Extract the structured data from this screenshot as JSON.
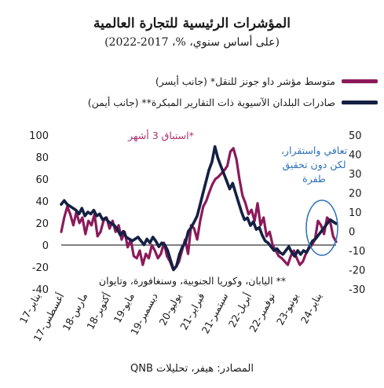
{
  "title": "المؤشرات الرئيسية للتجارة العالمية",
  "subtitle": "(على أساس سنوي، %، 2017-2022)",
  "source": "المصادر: هيفر، تحليلات QNB",
  "colors": {
    "series1": "#8b1a5a",
    "series2": "#152043",
    "annotation": "#2e72b8",
    "annotation_text": "#a8336f",
    "zero_line": "#000000"
  },
  "chart_data": {
    "type": "line",
    "x_labels": [
      "يناير-17",
      "أغسطس-17",
      "مارس-18",
      "أكتوبر-18",
      "مايو-19",
      "ديسمبر-19",
      "يوليو-20",
      "فبراير-21",
      "سبتمبر-21",
      "أبريل-22",
      "نوفمبر-22",
      "يونيو-23",
      "يناير-24"
    ],
    "ylim_left": [
      -40,
      100
    ],
    "yticks_left": [
      100,
      80,
      60,
      40,
      20,
      0,
      -20,
      -40
    ],
    "ylim_right": [
      -30,
      50
    ],
    "yticks_right": [
      50,
      40,
      30,
      20,
      10,
      0,
      -10,
      -20,
      -30
    ],
    "series": [
      {
        "name": "متوسط مؤشر داو جونز للنقل* (جانب أيسر)",
        "axis": "left",
        "color": "#8b1a5a",
        "values": [
          12,
          25,
          35,
          28,
          18,
          30,
          20,
          25,
          10,
          22,
          18,
          28,
          8,
          12,
          22,
          25,
          15,
          22,
          12,
          18,
          5,
          12,
          -2,
          5,
          -10,
          -12,
          -5,
          -18,
          -8,
          -12,
          0,
          -5,
          -12,
          -8,
          2,
          -10,
          -15,
          -22,
          -20,
          -15,
          -5,
          5,
          -8,
          18,
          15,
          5,
          22,
          35,
          40,
          48,
          55,
          60,
          62,
          65,
          68,
          72,
          85,
          88,
          78,
          60,
          45,
          38,
          28,
          32,
          22,
          38,
          18,
          25,
          8,
          12,
          0,
          -5,
          -10,
          -12,
          -15,
          -18,
          -10,
          -5,
          -12,
          -18,
          -15,
          -8,
          -3,
          0,
          5,
          22,
          18,
          10,
          25,
          22,
          8,
          3
        ]
      },
      {
        "name": "صادرات البلدان الآسيوية ذات التقارير المبكرة** (جانب أيمن)",
        "axis": "right",
        "color": "#152043",
        "values": [
          14,
          16,
          14,
          13,
          12,
          11,
          9,
          12,
          8,
          10,
          9,
          11,
          8,
          9,
          6,
          7,
          5,
          4,
          3,
          1,
          -2,
          0,
          -3,
          -4,
          -5,
          -4,
          -3,
          -5,
          -7,
          -4,
          -6,
          -3,
          -5,
          -8,
          -6,
          -7,
          -10,
          -15,
          -20,
          -18,
          -12,
          -8,
          -6,
          0,
          2,
          5,
          8,
          14,
          20,
          26,
          32,
          36,
          44,
          38,
          34,
          30,
          26,
          22,
          25,
          20,
          15,
          10,
          6,
          7,
          3,
          5,
          1,
          2,
          -2,
          -5,
          -6,
          -8,
          -10,
          -9,
          -11,
          -12,
          -10,
          -8,
          -11,
          -13,
          -10,
          -12,
          -10,
          -11,
          -8,
          -5,
          -4,
          -2,
          0,
          2,
          4,
          6,
          5,
          4
        ]
      }
    ],
    "annotations": {
      "shift": "*استباق 3 أشهر",
      "footnote": "** اليابان، وكوريا الجنوبية، وسنغافورة، وتايوان",
      "recovery": [
        "تعافي واستقرار،",
        "لكن دون تحقيق",
        "طفرة"
      ]
    }
  }
}
